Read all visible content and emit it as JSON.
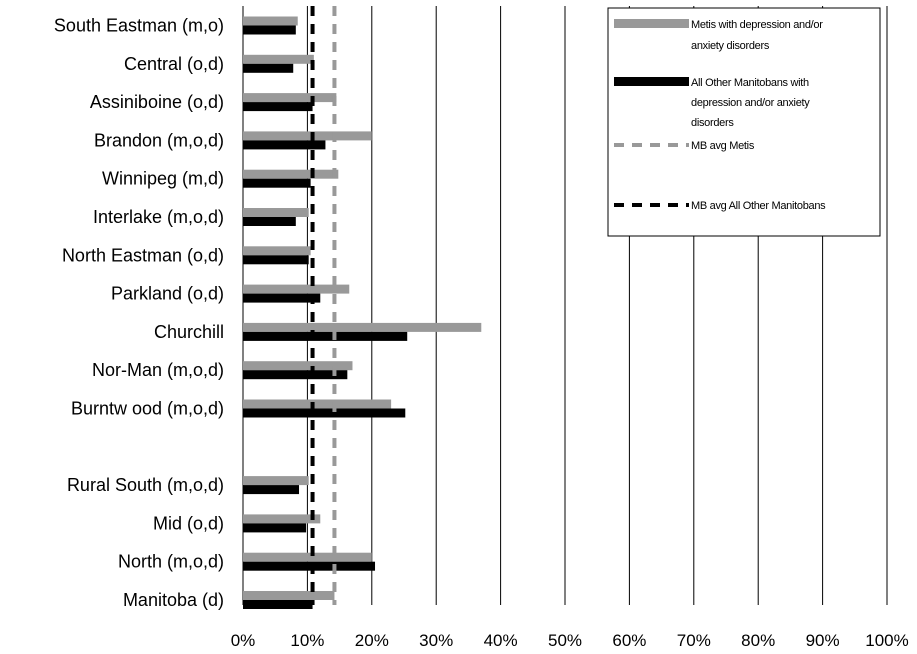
{
  "chart_data": {
    "type": "bar",
    "orientation": "horizontal",
    "categories": [
      "South Eastman (m,o)",
      "Central (o,d)",
      "Assiniboine (o,d)",
      "Brandon (m,o,d)",
      "Winnipeg (m,d)",
      "Interlake (m,o,d)",
      "North Eastman (o,d)",
      "Parkland (o,d)",
      "Churchill",
      "Nor-Man (m,o,d)",
      "Burntw ood (m,o,d)",
      "",
      "Rural South (m,o,d)",
      "Mid (o,d)",
      "North (m,o,d)",
      "Manitoba (d)"
    ],
    "series": [
      {
        "name": "Metis with depression and/or anxiety disorders",
        "color": "#999999",
        "values": [
          8.5,
          11,
          14.5,
          20,
          14.8,
          10.2,
          10.5,
          16.5,
          37,
          17,
          23,
          null,
          10.2,
          12,
          20,
          14.2
        ]
      },
      {
        "name": "All Other Manitobans with depression and/or anxiety disorders",
        "color": "#000000",
        "values": [
          8.2,
          7.8,
          10.8,
          12.8,
          10.5,
          8.2,
          10.2,
          12,
          25.5,
          16.2,
          25.2,
          null,
          8.7,
          9.8,
          20.5,
          10.8
        ]
      }
    ],
    "reference_lines": [
      {
        "name": "MB avg Metis",
        "value": 14.2,
        "color": "#999999",
        "style": "dashed"
      },
      {
        "name": "MB avg All Other Manitobans",
        "value": 10.8,
        "color": "#000000",
        "style": "dashed"
      }
    ],
    "x_ticks": [
      "0%",
      "10%",
      "20%",
      "30%",
      "40%",
      "50%",
      "60%",
      "70%",
      "80%",
      "90%",
      "100%"
    ],
    "xlim": [
      0,
      100
    ],
    "grid": "vertical",
    "legend": {
      "position": "top-right",
      "entries": [
        {
          "line1": "Metis with depression and/or",
          "line2": "anxiety disorders",
          "line3": ""
        },
        {
          "line1": "All Other Manitobans with",
          "line2": "depression and/or anxiety",
          "line3": "disorders"
        },
        {
          "line1": "MB avg Metis",
          "line2": "",
          "line3": ""
        },
        {
          "line1": "MB avg All Other Manitobans",
          "line2": "",
          "line3": ""
        }
      ]
    }
  }
}
